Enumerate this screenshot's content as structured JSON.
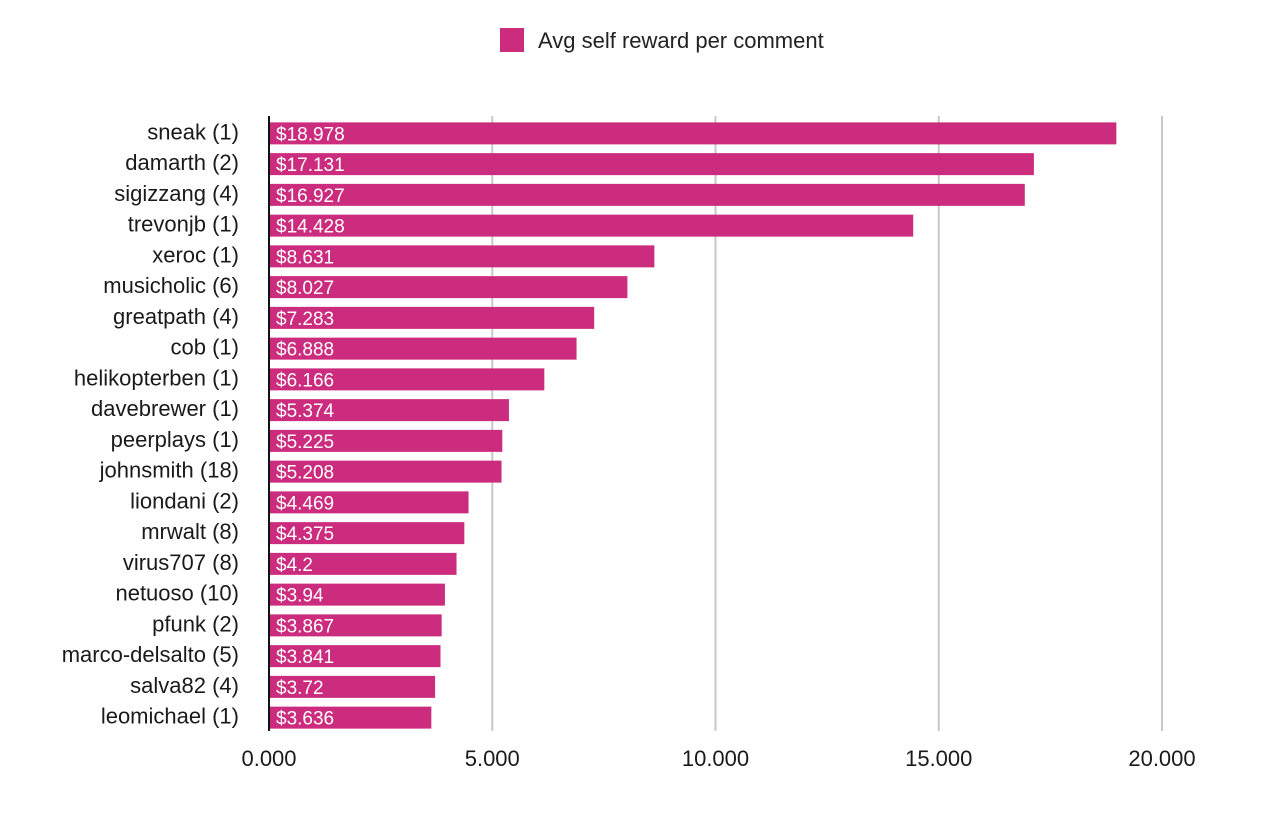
{
  "legend": {
    "label": "Avg self reward per comment",
    "color": "#cc2c7e"
  },
  "chart_data": {
    "type": "bar",
    "orientation": "horizontal",
    "categories": [
      "sneak (1)",
      "damarth (2)",
      "sigizzang (4)",
      "trevonjb (1)",
      "xeroc (1)",
      "musicholic (6)",
      "greatpath (4)",
      "cob (1)",
      "helikopterben (1)",
      "davebrewer (1)",
      "peerplays (1)",
      "johnsmith (18)",
      "liondani (2)",
      "mrwalt (8)",
      "virus707 (8)",
      "netuoso (10)",
      "pfunk (2)",
      "marco-delsalto (5)",
      "salva82 (4)",
      "leomichael (1)"
    ],
    "series": [
      {
        "name": "Avg self reward per comment",
        "color": "#cc2c7e",
        "values": [
          18.978,
          17.131,
          16.927,
          14.428,
          8.631,
          8.027,
          7.283,
          6.888,
          6.166,
          5.374,
          5.225,
          5.208,
          4.469,
          4.375,
          4.2,
          3.94,
          3.867,
          3.841,
          3.72,
          3.636
        ],
        "labels": [
          "$18.978",
          "$17.131",
          "$16.927",
          "$14.428",
          "$8.631",
          "$8.027",
          "$7.283",
          "$6.888",
          "$6.166",
          "$5.374",
          "$5.225",
          "$5.208",
          "$4.469",
          "$4.375",
          "$4.2",
          "$3.94",
          "$3.867",
          "$3.841",
          "$3.72",
          "$3.636"
        ]
      }
    ],
    "xlim": [
      0,
      20
    ],
    "xticks": [
      0,
      5,
      10,
      15,
      20
    ],
    "xtick_labels": [
      "0.000",
      "5.000",
      "10.000",
      "15.000",
      "20.000"
    ],
    "grid": "vertical",
    "legend_position": "top-center",
    "title": "",
    "xlabel": "",
    "ylabel": ""
  }
}
